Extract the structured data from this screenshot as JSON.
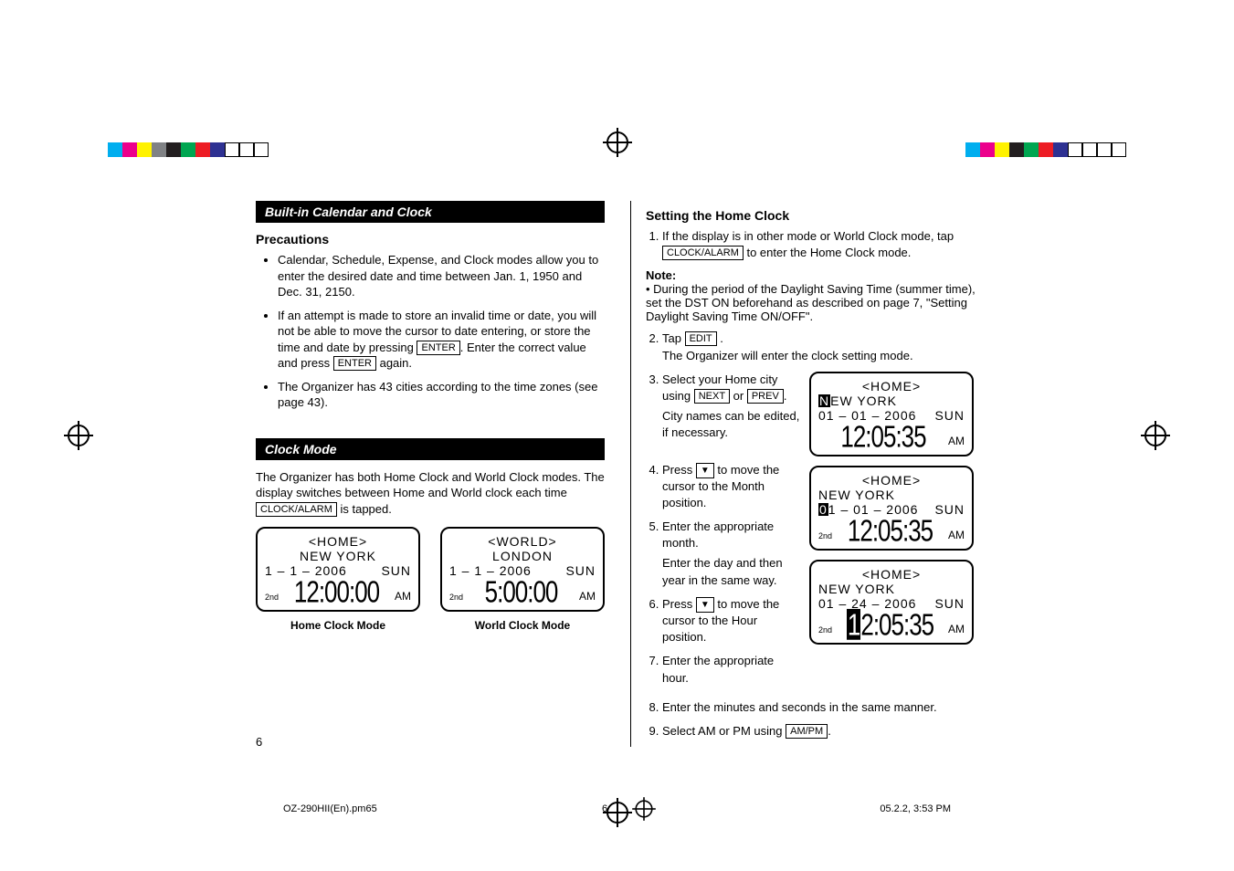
{
  "swatches_left": [
    "#00aeef",
    "#ec008c",
    "#fff200",
    "#808285",
    "#231f20",
    "#00a651",
    "#ed1c24",
    "#2e3192",
    "#ffffff",
    "#ffffff",
    "#ffffff"
  ],
  "swatches_right": [
    "#00aeef",
    "#ec008c",
    "#fff200",
    "#231f20",
    "#00a651",
    "#ed1c24",
    "#2e3192",
    "#ffffff",
    "#ffffff",
    "#ffffff",
    "#ffffff"
  ],
  "left": {
    "bar1": "Built-in Calendar and  Clock",
    "precautions": "Precautions",
    "b1": "Calendar, Schedule, Expense, and Clock modes allow you to enter the desired date and time between Jan. 1, 1950 and Dec. 31, 2150.",
    "b2a": "If an attempt is made to store an invalid time or date, you will not be able to move the cursor to date entering, or store the time and date by pressing ",
    "b2b": ". Enter the correct value and press ",
    "b2c": " again.",
    "enter": "ENTER",
    "b3": "The Organizer has 43 cities according to the time zones (see page 43).",
    "bar2": "Clock Mode",
    "para": "The Organizer has both Home Clock and World Clock modes. The display switches between Home and World clock each time ",
    "clockalarm": "CLOCK/ALARM",
    "para2": " is tapped.",
    "home": {
      "label": "<HOME>",
      "city": "NEW  YORK",
      "date": "1 – 1 – 2006",
      "day": "SUN",
      "sec": "2nd",
      "time": "12:00:00",
      "ampm": "AM",
      "cap": "Home Clock Mode"
    },
    "world": {
      "label": "<WORLD>",
      "city": "LONDON",
      "date": "1 – 1 – 2006",
      "day": "SUN",
      "sec": "2nd",
      "time": "5:00:00",
      "ampm": "AM",
      "cap": "World Clock Mode"
    }
  },
  "right": {
    "h": "Setting the Home Clock",
    "s1a": "If the display is in other mode or World Clock mode, tap ",
    "s1b": " to enter the Home Clock mode.",
    "clockalarm": "CLOCK/ALARM",
    "note": "Note:",
    "noteText": "During the period of the Daylight Saving Time (summer time), set the DST ON beforehand as described on page 7, \"Setting Daylight Saving Time ON/OFF\".",
    "s2a": "Tap ",
    "edit": "EDIT",
    "s2b": " .",
    "s2c": "The Organizer will enter the clock setting mode.",
    "s3a": "Select your Home city using ",
    "next": "NEXT",
    "or": " or ",
    "prev": "PREV",
    "s3c": "City names can be edited, if necessary.",
    "s4a": "Press ",
    "s4b": " to move the cursor to the Month position.",
    "s5a": "Enter the appropriate month.",
    "s5b": "Enter the day and then year in the same way.",
    "s6a": "Press ",
    "s6b": " to move the cursor to the Hour position.",
    "s7": "Enter the appropriate hour.",
    "s8": "Enter the minutes and seconds in the same manner.",
    "s9a": "Select AM or PM using ",
    "ampm": "AM/PM",
    "lcd1": {
      "label": "<HOME>",
      "cityPre": "N",
      "cityRest": "EW  YORK",
      "date": "01 – 01 – 2006",
      "day": "SUN",
      "time": "12:05:35",
      "ampmTxt": "AM"
    },
    "lcd2": {
      "label": "<HOME>",
      "city": "NEW  YORK",
      "dPre": "0",
      "dRest": "1 – 01 – 2006",
      "day": "SUN",
      "sec": "2nd",
      "time": "12:05:35",
      "ampmTxt": "AM"
    },
    "lcd3": {
      "label": "<HOME>",
      "city": "NEW  YORK",
      "date": "01 – 24 – 2006",
      "day": "SUN",
      "sec": "2nd",
      "tPre": "1",
      "tRest": "2:05:35",
      "ampmTxt": "AM"
    }
  },
  "pagenum": "6",
  "footer": {
    "file": "OZ-290HII(En).pm65",
    "page": "6",
    "ts": "05.2.2, 3:53 PM"
  }
}
